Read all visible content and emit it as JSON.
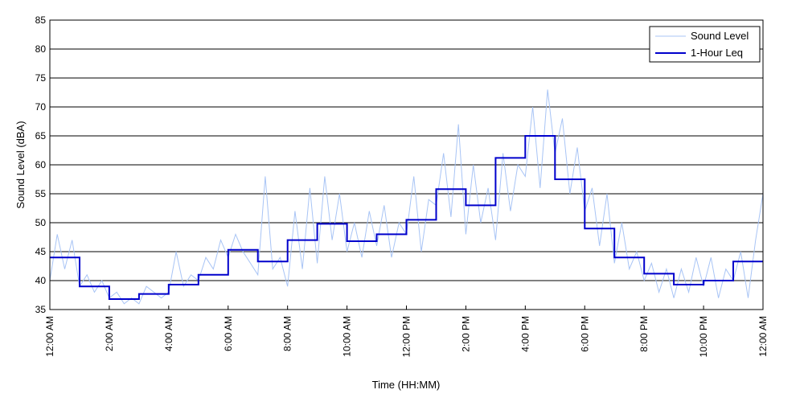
{
  "chart_data": {
    "type": "line",
    "title": "",
    "xlabel": "Time (HH:MM)",
    "ylabel": "Sound Level (dBA)",
    "xlim": [
      0,
      24
    ],
    "ylim": [
      35,
      85
    ],
    "y_ticks": [
      35,
      40,
      45,
      50,
      55,
      60,
      65,
      70,
      75,
      80,
      85
    ],
    "x_ticks": [
      0,
      2,
      4,
      6,
      8,
      10,
      12,
      14,
      16,
      18,
      20,
      22,
      24
    ],
    "x_tick_labels": [
      "12:00 AM",
      "2:00 AM",
      "4:00 AM",
      "6:00 AM",
      "8:00 AM",
      "10:00 AM",
      "12:00 PM",
      "2:00 PM",
      "4:00 PM",
      "6:00 PM",
      "8:00 PM",
      "10:00 PM",
      "12:00 AM"
    ],
    "grid": "horizontal",
    "legend_position": "top-right",
    "series": [
      {
        "name": "Sound Level",
        "color": "#a8c4f5",
        "style": "thin-line",
        "x": [
          0.0,
          0.25,
          0.5,
          0.75,
          1.0,
          1.25,
          1.5,
          1.75,
          2.0,
          2.25,
          2.5,
          2.75,
          3.0,
          3.25,
          3.5,
          3.75,
          4.0,
          4.25,
          4.5,
          4.75,
          5.0,
          5.25,
          5.5,
          5.75,
          6.0,
          6.25,
          6.5,
          6.75,
          7.0,
          7.25,
          7.5,
          7.75,
          8.0,
          8.25,
          8.5,
          8.75,
          9.0,
          9.25,
          9.5,
          9.75,
          10.0,
          10.25,
          10.5,
          10.75,
          11.0,
          11.25,
          11.5,
          11.75,
          12.0,
          12.25,
          12.5,
          12.75,
          13.0,
          13.25,
          13.5,
          13.75,
          14.0,
          14.25,
          14.5,
          14.75,
          15.0,
          15.25,
          15.5,
          15.75,
          16.0,
          16.25,
          16.5,
          16.75,
          17.0,
          17.25,
          17.5,
          17.75,
          18.0,
          18.25,
          18.5,
          18.75,
          19.0,
          19.25,
          19.5,
          19.75,
          20.0,
          20.25,
          20.5,
          20.75,
          21.0,
          21.25,
          21.5,
          21.75,
          22.0,
          22.25,
          22.5,
          22.75,
          23.0,
          23.25,
          23.5,
          23.75,
          24.0
        ],
        "y": [
          40,
          48,
          42,
          47,
          39,
          41,
          38,
          40,
          37,
          38,
          36,
          37,
          36,
          39,
          38,
          37,
          38,
          45,
          39,
          41,
          40,
          44,
          42,
          47,
          44,
          48,
          45,
          43,
          41,
          58,
          42,
          44,
          39,
          52,
          42,
          56,
          43,
          58,
          47,
          55,
          45,
          50,
          44,
          52,
          46,
          53,
          44,
          50,
          48,
          58,
          45,
          54,
          53,
          62,
          51,
          67,
          48,
          60,
          50,
          56,
          47,
          62,
          52,
          60,
          58,
          70,
          56,
          73,
          62,
          68,
          55,
          63,
          52,
          56,
          46,
          55,
          43,
          50,
          42,
          45,
          40,
          43,
          38,
          42,
          37,
          42,
          38,
          44,
          39,
          44,
          37,
          42,
          40,
          45,
          37,
          47,
          55
        ]
      },
      {
        "name": "1-Hour Leq",
        "color": "#0000cc",
        "style": "step",
        "x": [
          0,
          1,
          2,
          3,
          4,
          5,
          6,
          7,
          8,
          9,
          10,
          11,
          12,
          13,
          14,
          15,
          16,
          17,
          18,
          19,
          20,
          21,
          22,
          23
        ],
        "y": [
          44,
          39,
          36.8,
          37.7,
          39.3,
          41,
          45.3,
          43.3,
          47,
          49.8,
          46.8,
          48,
          50.5,
          55.8,
          53,
          61.2,
          65,
          57.5,
          49,
          44,
          41.2,
          39.3,
          40,
          43.3
        ]
      }
    ]
  }
}
